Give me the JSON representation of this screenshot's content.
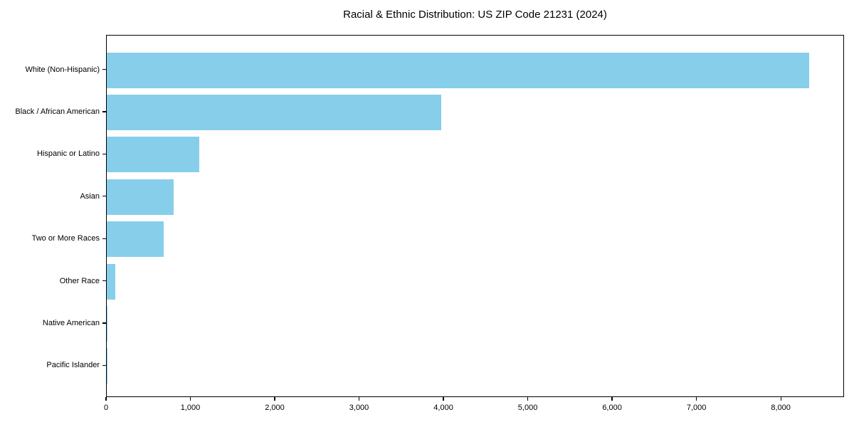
{
  "chart_data": {
    "type": "bar",
    "orientation": "horizontal",
    "title": "Racial & Ethnic Distribution: US ZIP Code 21231 (2024)",
    "categories": [
      "White (Non-Hispanic)",
      "Black / African American",
      "Hispanic or Latino",
      "Asian",
      "Two or More Races",
      "Other Race",
      "Native American",
      "Pacific Islander"
    ],
    "values": [
      8330,
      3966,
      1097,
      793,
      675,
      98,
      10,
      2
    ],
    "bar_color": "#87CEEB",
    "text_color": "#000000",
    "frame_color": "#000000",
    "background_color": "#ffffff",
    "xlim": [
      0,
      8750
    ],
    "x_ticks": [
      0,
      1000,
      2000,
      3000,
      4000,
      5000,
      6000,
      7000,
      8000
    ],
    "x_tick_labels": [
      "0",
      "1,000",
      "2,000",
      "3,000",
      "4,000",
      "5,000",
      "6,000",
      "7,000",
      "8,000"
    ],
    "xlabel": "",
    "ylabel": "",
    "grid": false,
    "legend": null
  }
}
